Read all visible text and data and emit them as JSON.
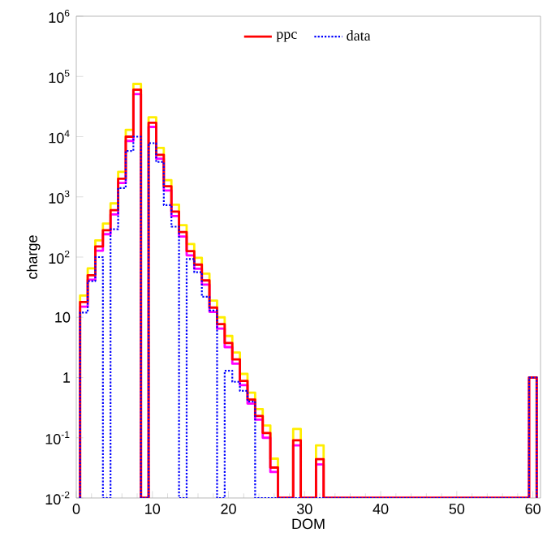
{
  "chart_data": {
    "type": "histogram",
    "xlabel": "DOM",
    "ylabel": "charge",
    "bins": [
      0.5,
      1.5,
      2.5,
      3.5,
      4.5,
      5.5,
      6.5,
      7.5,
      8.5,
      9.5,
      10.5,
      11.5,
      12.5,
      13.5,
      14.5,
      15.5,
      16.5,
      17.5,
      18.5,
      19.5,
      20.5,
      21.5,
      22.5,
      23.5,
      24.5,
      25.5,
      26.5,
      27.5,
      28.5,
      29.5,
      30.5,
      31.5,
      32.5,
      33.5,
      34.5,
      35.5,
      36.5,
      37.5,
      38.5,
      39.5,
      40.5,
      41.5,
      42.5,
      43.5,
      44.5,
      45.5,
      46.5,
      47.5,
      48.5,
      49.5,
      50.5,
      51.5,
      52.5,
      53.5,
      54.5,
      55.5,
      56.5,
      57.5,
      58.5,
      59.5,
      60.5
    ],
    "series": [
      {
        "color": "#ffee00",
        "line_style": "solid",
        "values": [
          23,
          65,
          190,
          360,
          780,
          2600,
          13000,
          75000,
          null,
          21000,
          6500,
          1900,
          740,
          340,
          165,
          97,
          53,
          19,
          10,
          4.9,
          2.6,
          1.15,
          0.56,
          0.3,
          0.16,
          0.045,
          null,
          null,
          0.14,
          null,
          null,
          0.075,
          null,
          null,
          null,
          null,
          null,
          null,
          null,
          null,
          null,
          null,
          null,
          null,
          null,
          null,
          null,
          null,
          null,
          null,
          null,
          null,
          null,
          null,
          null,
          null,
          null,
          null,
          null,
          1
        ]
      },
      {
        "color": "#ff00ff",
        "line_style": "solid",
        "values": [
          15,
          42,
          128,
          240,
          510,
          1700,
          8500,
          51000,
          null,
          14500,
          4300,
          1280,
          480,
          220,
          107,
          64,
          35,
          12.3,
          6.5,
          3.2,
          1.7,
          0.75,
          0.37,
          0.2,
          0.1,
          0.027,
          null,
          null,
          0.075,
          null,
          null,
          0.036,
          null,
          null,
          null,
          null,
          null,
          null,
          null,
          null,
          null,
          null,
          null,
          null,
          null,
          null,
          null,
          null,
          null,
          null,
          null,
          null,
          null,
          null,
          null,
          null,
          null,
          null,
          null,
          1
        ]
      },
      {
        "name": "ppc",
        "color": "#ff0000",
        "line_style": "solid",
        "values": [
          18,
          50,
          150,
          280,
          600,
          2000,
          10000,
          60000,
          null,
          17000,
          5000,
          1500,
          570,
          260,
          126,
          75,
          41,
          14.5,
          7.7,
          3.75,
          2.0,
          0.88,
          0.43,
          0.23,
          0.12,
          0.032,
          null,
          null,
          0.091,
          null,
          null,
          0.044,
          null,
          null,
          null,
          null,
          null,
          null,
          null,
          null,
          null,
          null,
          null,
          null,
          null,
          null,
          null,
          null,
          null,
          null,
          null,
          null,
          null,
          null,
          null,
          null,
          null,
          null,
          null,
          1
        ]
      },
      {
        "name": "data",
        "color": "#0000ff",
        "line_style": "dotted",
        "values": [
          12,
          40,
          100,
          null,
          290,
          1400,
          5800,
          10000,
          null,
          7800,
          3800,
          730,
          320,
          null,
          93,
          56,
          22,
          13,
          null,
          1.3,
          0.85,
          0.6,
          0.4,
          null,
          null,
          null,
          null,
          null,
          null,
          null,
          null,
          null,
          null,
          null,
          null,
          null,
          null,
          null,
          null,
          null,
          null,
          null,
          null,
          null,
          null,
          null,
          null,
          null,
          null,
          null,
          null,
          null,
          null,
          null,
          null,
          null,
          null,
          null,
          null,
          1
        ]
      }
    ],
    "xlim": [
      0,
      61
    ],
    "ylim": [
      0.01,
      1000000
    ],
    "log": "y",
    "xticks": [
      0,
      10,
      20,
      30,
      40,
      50,
      60
    ],
    "yticks": [
      {
        "value": 0.01,
        "label": "10$^{-2}$"
      },
      {
        "value": 0.1,
        "label": "10$^{-1}$"
      },
      1,
      10,
      {
        "value": 100,
        "label": "10$^{2}$"
      },
      {
        "value": 1000,
        "label": "10$^{3}$"
      },
      {
        "value": 10000,
        "label": "10$^{4}$"
      },
      {
        "value": 100000,
        "label": "10$^{5}$"
      },
      {
        "value": 1000000,
        "label": "10$^{6}$"
      }
    ],
    "grid": false,
    "legend": "top"
  }
}
